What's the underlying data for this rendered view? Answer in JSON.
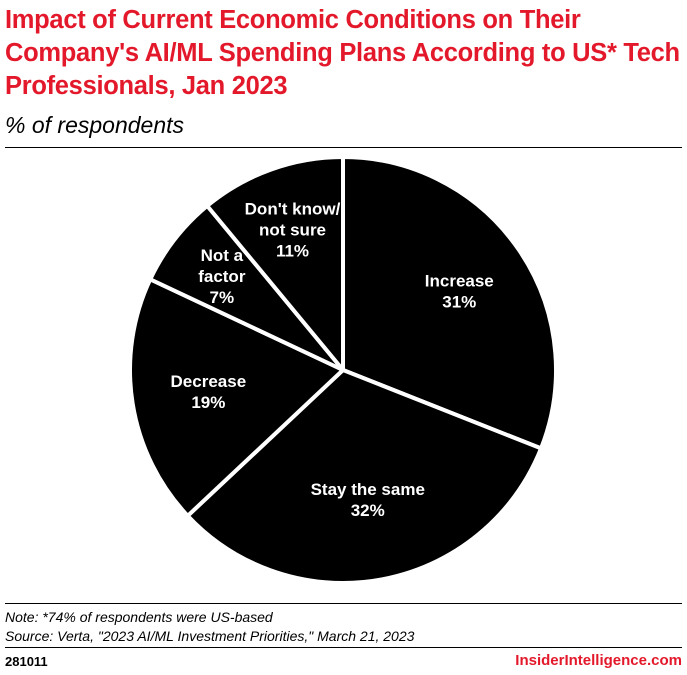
{
  "header": {
    "title": "Impact of Current Economic Conditions on Their Company's AI/ML Spending Plans According to US* Tech Professionals, Jan 2023",
    "subtitle": "% of respondents"
  },
  "colors": {
    "title": "#e3192b",
    "slice_fill": "#000000",
    "slice_border": "#ffffff",
    "label": "#ffffff",
    "brand": "#e3192b"
  },
  "chart_data": {
    "type": "pie",
    "title": "Impact of Current Economic Conditions on Their Company's AI/ML Spending Plans According to US* Tech Professionals, Jan 2023",
    "subtitle": "% of respondents",
    "start": "12 o'clock",
    "direction": "clockwise",
    "slices": [
      {
        "label": "Increase",
        "value": 31,
        "value_text": "31%",
        "label_lines": [
          "Increase",
          "31%"
        ]
      },
      {
        "label": "Stay the same",
        "value": 32,
        "value_text": "32%",
        "label_lines": [
          "Stay the same",
          "32%"
        ]
      },
      {
        "label": "Decrease",
        "value": 19,
        "value_text": "19%",
        "label_lines": [
          "Decrease",
          "19%"
        ]
      },
      {
        "label": "Not a factor",
        "value": 7,
        "value_text": "7%",
        "label_lines": [
          "Not a",
          "factor",
          "7%"
        ]
      },
      {
        "label": "Don't know/ not sure",
        "value": 11,
        "value_text": "11%",
        "label_lines": [
          "Don't know/",
          "not sure",
          "11%"
        ]
      }
    ]
  },
  "footer": {
    "note": "Note: *74% of respondents were US-based",
    "source": "Source: Verta, \"2023 AI/ML Investment Priorities,\" March 21, 2023",
    "chart_id": "281011",
    "brand": "InsiderIntelligence.com"
  }
}
